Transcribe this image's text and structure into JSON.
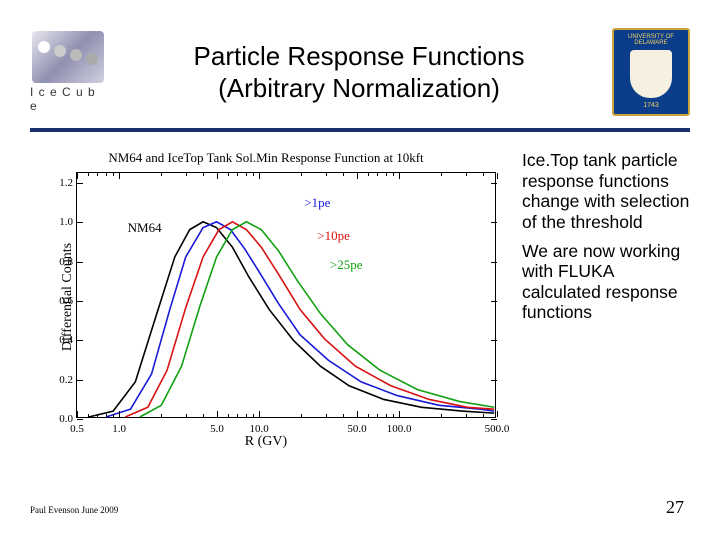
{
  "header": {
    "logo_left_text": "I c e C u b e",
    "title_line1": "Particle Response Functions",
    "title_line2": "(Arbitrary Normalization)",
    "logo_right_top": "UNIVERSITY OF DELAWARE",
    "logo_right_bottom": "1743"
  },
  "chart": {
    "type": "line",
    "title": "NM64 and IceTop Tank Sol.Min Response Function at 10kft",
    "title_fontsize": 13,
    "ylabel": "Differential Counts",
    "xlabel": "R (GV)",
    "label_fontsize": 14,
    "xscale": "log",
    "xlim": [
      0.5,
      500
    ],
    "ylim": [
      0,
      1.25
    ],
    "xticks": [
      0.5,
      1,
      5,
      10,
      50,
      100,
      500
    ],
    "xtick_labels": [
      "0.5",
      "1.0",
      "5.0",
      "10.0",
      "50.0",
      "100.0",
      "500.0"
    ],
    "yticks": [
      0.0,
      0.2,
      0.4,
      0.6,
      0.8,
      1.0,
      1.2
    ],
    "ytick_labels": [
      "0.0",
      "0.2",
      "0.4",
      "0.6",
      "0.8",
      "1.0",
      "1.2"
    ],
    "background_color": "#ffffff",
    "border_color": "#000000",
    "series": [
      {
        "name": "NM64",
        "label": "NM64",
        "color": "#000000",
        "line_width": 1.6,
        "points_R": [
          0.6,
          0.9,
          1.3,
          1.8,
          2.5,
          3.2,
          4.0,
          5.0,
          6.5,
          8.5,
          12,
          18,
          28,
          45,
          80,
          150,
          300,
          500
        ],
        "points_Y": [
          0.0,
          0.03,
          0.18,
          0.5,
          0.82,
          0.96,
          1.0,
          0.97,
          0.87,
          0.72,
          0.55,
          0.39,
          0.26,
          0.16,
          0.09,
          0.05,
          0.03,
          0.02
        ]
      },
      {
        "name": ">1pe",
        "label": ">1pe",
        "color": "#1818d8",
        "line_width": 1.6,
        "points_R": [
          0.8,
          1.2,
          1.7,
          2.3,
          3.0,
          4.0,
          5.0,
          6.3,
          8.0,
          10,
          14,
          20,
          32,
          55,
          100,
          200,
          400,
          500
        ],
        "points_Y": [
          0.0,
          0.04,
          0.22,
          0.55,
          0.82,
          0.97,
          1.0,
          0.96,
          0.86,
          0.75,
          0.58,
          0.42,
          0.29,
          0.18,
          0.11,
          0.06,
          0.04,
          0.03
        ]
      },
      {
        "name": ">10pe",
        "label": ">10pe",
        "color": "#d81010",
        "line_width": 1.6,
        "points_R": [
          1.1,
          1.6,
          2.2,
          3.0,
          4.0,
          5.2,
          6.5,
          8.2,
          10.5,
          14,
          20,
          30,
          50,
          90,
          170,
          320,
          500
        ],
        "points_Y": [
          0.0,
          0.05,
          0.24,
          0.56,
          0.82,
          0.96,
          1.0,
          0.96,
          0.87,
          0.73,
          0.55,
          0.4,
          0.26,
          0.16,
          0.09,
          0.05,
          0.04
        ]
      },
      {
        "name": ">25pe",
        "label": ">25pe",
        "color": "#10a010",
        "line_width": 1.6,
        "points_R": [
          1.4,
          2.0,
          2.8,
          3.8,
          5.0,
          6.5,
          8.2,
          10.5,
          14,
          19,
          28,
          44,
          75,
          140,
          280,
          500
        ],
        "points_Y": [
          0.0,
          0.06,
          0.26,
          0.57,
          0.82,
          0.96,
          1.0,
          0.96,
          0.85,
          0.7,
          0.53,
          0.37,
          0.24,
          0.14,
          0.08,
          0.05
        ]
      }
    ],
    "inline_labels": [
      {
        "text": "NM64",
        "R": 1.15,
        "Y": 0.97,
        "color": "#000000"
      },
      {
        "text": ">1pe",
        "R": 21,
        "Y": 1.1,
        "color": "#1818d8"
      },
      {
        "text": ">10pe",
        "R": 26,
        "Y": 0.93,
        "color": "#d81010"
      },
      {
        "text": ">25pe",
        "R": 32,
        "Y": 0.78,
        "color": "#10a010"
      }
    ]
  },
  "side": {
    "para1": "Ice.Top tank particle response functions change with selection of the threshold",
    "para2": "We are now working with FLUKA calculated response functions"
  },
  "footer": {
    "left": "Paul Evenson  June 2009",
    "page": "27"
  }
}
